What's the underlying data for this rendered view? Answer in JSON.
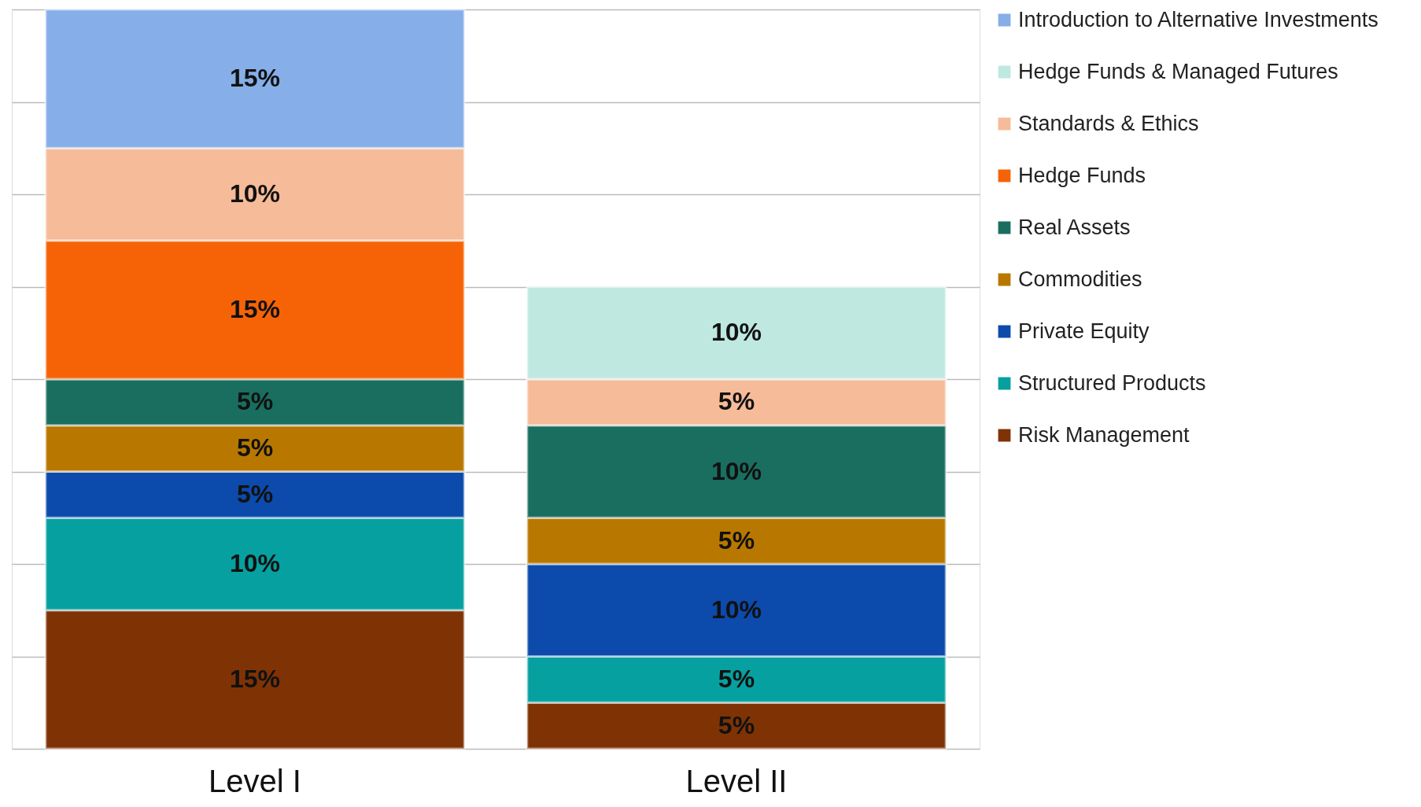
{
  "chart_data": {
    "type": "bar",
    "stacked": true,
    "grid": "y",
    "legend": "right",
    "categories": [
      "Level I",
      "Level II"
    ],
    "series": [
      {
        "name": "Risk Management",
        "color": "#7f3305",
        "values": [
          15,
          5
        ],
        "value_labels": [
          "15%",
          "5%"
        ]
      },
      {
        "name": "Structured Products",
        "color": "#07a0a0",
        "values": [
          10,
          5
        ],
        "value_labels": [
          "10%",
          "5%"
        ]
      },
      {
        "name": "Private Equity",
        "color": "#0c4aab",
        "values": [
          5,
          10
        ],
        "value_labels": [
          "5%",
          "10%"
        ]
      },
      {
        "name": "Commodities",
        "color": "#b87800",
        "values": [
          5,
          5
        ],
        "value_labels": [
          "5%",
          "5%"
        ]
      },
      {
        "name": "Real Assets",
        "color": "#1a6e5f",
        "values": [
          5,
          10
        ],
        "value_labels": [
          "5%",
          "10%"
        ]
      },
      {
        "name": "Hedge Funds",
        "color": "#f66306",
        "values": [
          15,
          null
        ],
        "value_labels": [
          "15%",
          null
        ]
      },
      {
        "name": "Standards & Ethics",
        "color": "#f6bb98",
        "values": [
          10,
          5
        ],
        "value_labels": [
          "10%",
          "5%"
        ]
      },
      {
        "name": "Hedge Funds & Managed Futures",
        "color": "#bfe8e0",
        "values": [
          null,
          10
        ],
        "value_labels": [
          null,
          "10%"
        ]
      },
      {
        "name": "Introduction to Alternative Investments",
        "color": "#86aee8",
        "values": [
          15,
          null
        ],
        "value_labels": [
          "15%",
          null
        ]
      }
    ]
  }
}
